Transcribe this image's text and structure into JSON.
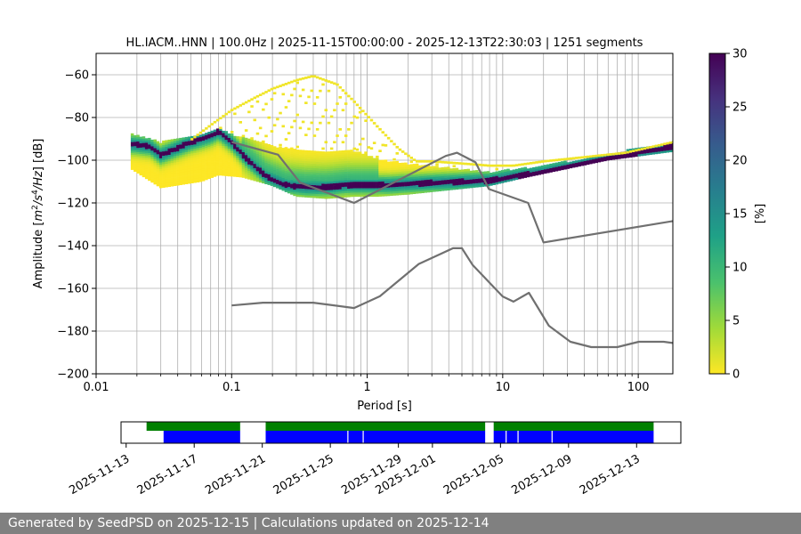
{
  "chart_data": [
    {
      "type": "heatmap",
      "title": "HL.IACM..HNN | 100.0Hz | 2025-11-15T00:00:00 - 2025-12-13T22:30:03 | 1251 segments",
      "xlabel": "Period [s]",
      "ylabel_main": "Amplitude [",
      "ylabel_unit_a": "m",
      "ylabel_exp_a": "2",
      "ylabel_sep": "/",
      "ylabel_unit_b": "s",
      "ylabel_exp_b": "4",
      "ylabel_unit_c": "/Hz",
      "ylabel_tail": "] [dB]",
      "x_scale": "log",
      "xlim": [
        0.01,
        180
      ],
      "ylim": [
        -200,
        -50
      ],
      "x_ticks": [
        0.01,
        0.1,
        1,
        10,
        100
      ],
      "x_tick_labels": [
        "0.01",
        "0.1",
        "1",
        "10",
        "100"
      ],
      "y_ticks": [
        -200,
        -180,
        -160,
        -140,
        -120,
        -100,
        -80,
        -60
      ],
      "y_tick_labels": [
        "−200",
        "−180",
        "−160",
        "−140",
        "−120",
        "−100",
        "−80",
        "−60"
      ],
      "grid": true,
      "colorbar": {
        "label": "[%]",
        "range": [
          0,
          30
        ],
        "ticks": [
          0,
          5,
          10,
          15,
          20,
          25,
          30
        ],
        "tick_labels": [
          "0",
          "5",
          "10",
          "15",
          "20",
          "25",
          "30"
        ],
        "colormap": [
          "#fde725",
          "#a0da39",
          "#4ac16d",
          "#1fa187",
          "#277f8e",
          "#365c8d",
          "#46327e",
          "#440154"
        ]
      },
      "mode_line": {
        "x": [
          0.019,
          0.025,
          0.03,
          0.05,
          0.07,
          0.08,
          0.1,
          0.13,
          0.18,
          0.25,
          0.35,
          0.5,
          0.7,
          1.0,
          1.5,
          2.0,
          3.0,
          5.0,
          8.0,
          12.0,
          20.0,
          40.0,
          80.0,
          180.0
        ],
        "y": [
          -93,
          -94,
          -98,
          -92,
          -89,
          -87,
          -92,
          -100,
          -108,
          -112,
          -113,
          -113,
          -112,
          -112,
          -112,
          -111.5,
          -111,
          -110.5,
          -110,
          -108,
          -106,
          -102,
          -98,
          -94
        ]
      },
      "envelope_upper": {
        "x": [
          0.05,
          0.07,
          0.1,
          0.15,
          0.2,
          0.3,
          0.4,
          0.6,
          0.8,
          1.2,
          1.7,
          2.3,
          3.0,
          5.0,
          8.0,
          12.0,
          20.0,
          40.0,
          80.0,
          180.0
        ],
        "y": [
          -90,
          -83,
          -76,
          -70,
          -66,
          -62,
          -60,
          -64,
          -72,
          -84,
          -94,
          -100,
          -100,
          -101,
          -102,
          -102,
          -100,
          -98,
          -96,
          -91
        ]
      },
      "envelope_core_upper": {
        "x": [
          0.018,
          0.03,
          0.06,
          0.08,
          0.12,
          0.2,
          0.4,
          0.8,
          1.2,
          2.0,
          4.0,
          8.0,
          15.0,
          30.0,
          60.0,
          180.0
        ],
        "y": [
          -88,
          -92,
          -88,
          -86,
          -90,
          -94,
          -96,
          -96,
          -100,
          -102,
          -104,
          -106,
          -104,
          -101,
          -98,
          -93
        ]
      },
      "envelope_lower": {
        "x": [
          0.018,
          0.03,
          0.06,
          0.08,
          0.12,
          0.2,
          0.3,
          0.5,
          0.8,
          1.2,
          2.0,
          4.0,
          8.0,
          15.0,
          30.0,
          60.0,
          180.0
        ],
        "y": [
          -104,
          -113,
          -110,
          -107,
          -108,
          -112,
          -117,
          -118,
          -117,
          -117,
          -116,
          -114,
          -112,
          -108,
          -104,
          -100,
          -96
        ]
      },
      "model_high": {
        "x": [
          0.1,
          0.22,
          0.32,
          0.8,
          3.8,
          4.6,
          6.3,
          7.9,
          15.4,
          20.0,
          180.0
        ],
        "y": [
          -91.5,
          -97.4,
          -110.5,
          -120,
          -98.0,
          -96.5,
          -101.0,
          -113.5,
          -120.0,
          -138.5,
          -128.5
        ]
      },
      "model_low": {
        "x": [
          0.1,
          0.17,
          0.4,
          0.8,
          1.24,
          2.4,
          4.3,
          5.0,
          6.0,
          10.0,
          12.0,
          15.6,
          21.9,
          31.6,
          45.0,
          70.0,
          101.0,
          154.0,
          180.0
        ],
        "y": [
          -168,
          -166.7,
          -166.7,
          -169.2,
          -163.7,
          -148.6,
          -141.2,
          -141.2,
          -149.1,
          -163.8,
          -166.2,
          -162.1,
          -177.5,
          -185.0,
          -187.5,
          -187.5,
          -185.0,
          -185.0,
          -185.6
        ]
      }
    },
    {
      "type": "timeline",
      "x_tick_labels": [
        "2025-11-13",
        "2025-11-17",
        "2025-11-21",
        "2025-11-25",
        "2025-11-29",
        "2025-12-01",
        "2025-12-05",
        "2025-12-09",
        "2025-12-13"
      ],
      "x_ticks": [
        "2025-11-13",
        "2025-11-17",
        "2025-11-21",
        "2025-11-25",
        "2025-11-29",
        "2025-12-01",
        "2025-12-05",
        "2025-12-09",
        "2025-12-13"
      ],
      "xlim": [
        "2025-11-12.7",
        "2025-12-15.6"
      ],
      "colors": {
        "data_available": "#008000",
        "psd_used": "#0000ff"
      },
      "green_segments": [
        [
          "2025-11-14.2",
          "2025-11-19.7"
        ],
        [
          "2025-11-21.2",
          "2025-12-04.1"
        ],
        [
          "2025-12-04.6",
          "2025-12-14.0"
        ]
      ],
      "blue_segments": [
        [
          "2025-11-15.2",
          "2025-11-19.7"
        ],
        [
          "2025-11-21.2",
          "2025-12-04.1"
        ],
        [
          "2025-12-04.6",
          "2025-12-14.0"
        ]
      ],
      "blue_gaps": [
        "2025-11-26.0",
        "2025-11-26.9",
        "2025-12-05.3",
        "2025-12-06.0",
        "2025-12-08.0"
      ]
    }
  ],
  "footer": {
    "text": "Generated by SeedPSD on 2025-12-15 | Calculations updated on 2025-12-14",
    "background": "#808080"
  }
}
